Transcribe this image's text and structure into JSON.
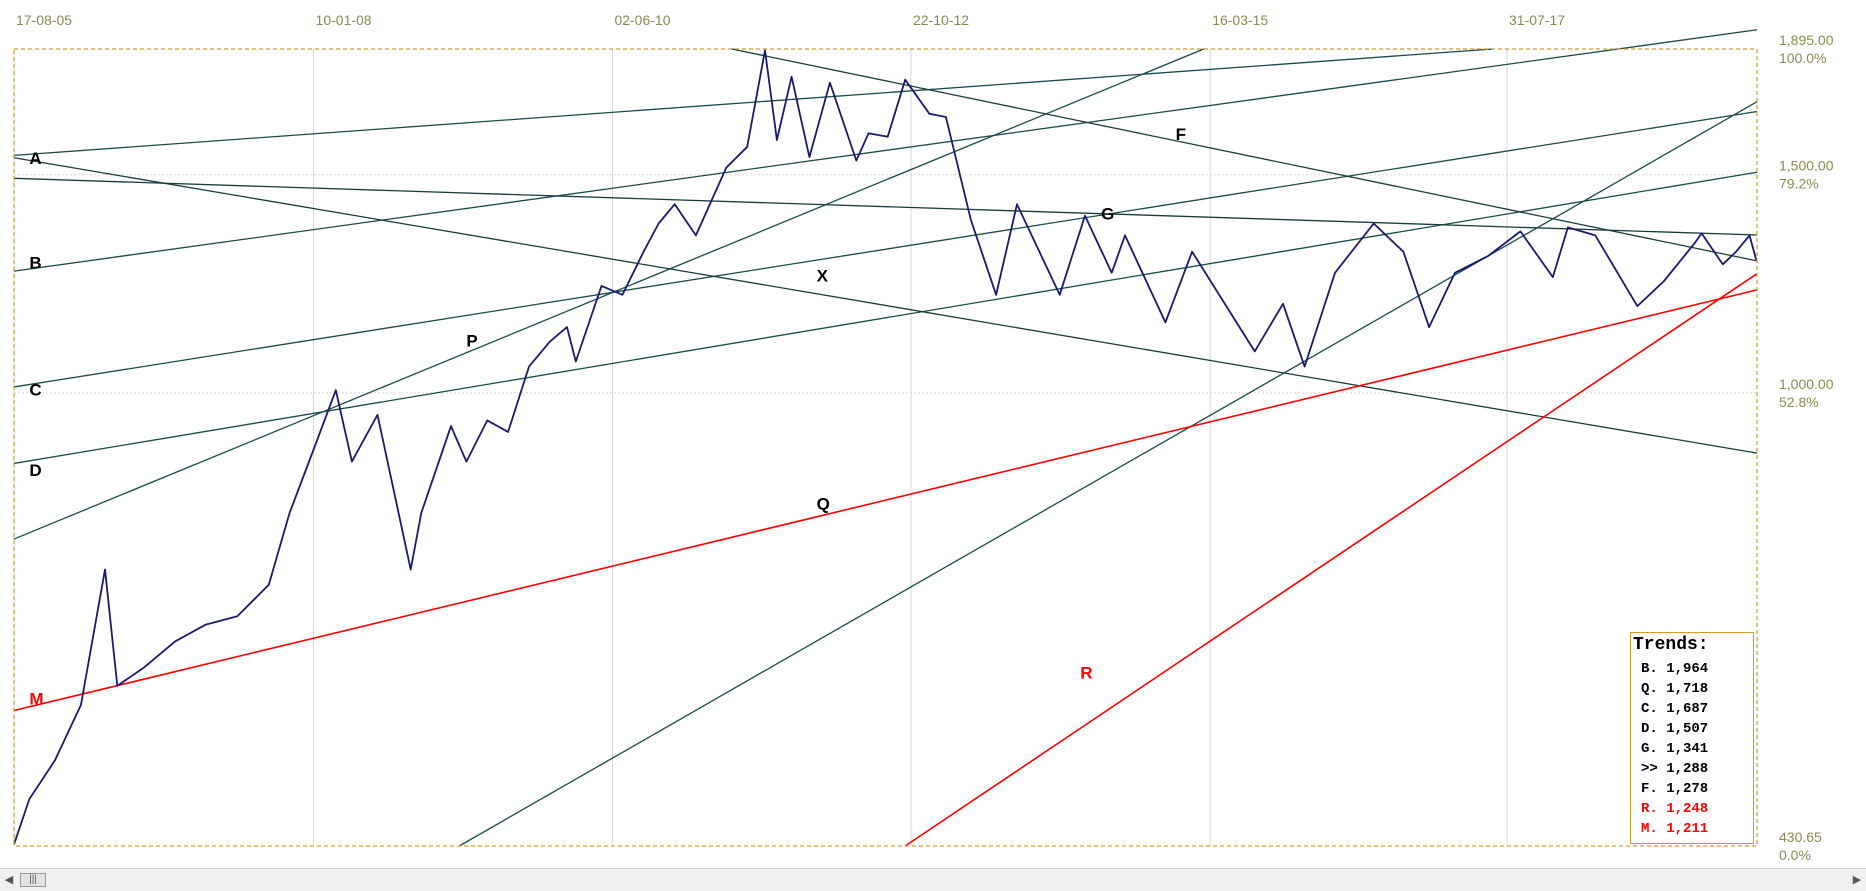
{
  "chart_data": {
    "type": "line",
    "x_axis": {
      "tick_labels": [
        "17-08-05",
        "10-01-08",
        "02-06-10",
        "22-10-12",
        "16-03-15",
        "31-07-17"
      ],
      "range": [
        "2005-08-17",
        "2019-08-01"
      ]
    },
    "y_axis": {
      "scale": "log",
      "range": [
        430.65,
        1895.0
      ],
      "ticks": [
        {
          "value": "1,895.00",
          "pct": "100.0%"
        },
        {
          "value": "1,500.00",
          "pct": "79.2%"
        },
        {
          "value": "1,000.00",
          "pct": "52.8%"
        },
        {
          "value": "430.65",
          "pct": "0.0%"
        }
      ]
    },
    "grid": true,
    "series": [
      {
        "color": "#1a1a6e",
        "points": [
          [
            "2005-08-17",
            432
          ],
          [
            "2005-10-01",
            470
          ],
          [
            "2005-12-15",
            505
          ],
          [
            "2006-03-01",
            560
          ],
          [
            "2006-05-10",
            720
          ],
          [
            "2006-06-15",
            580
          ],
          [
            "2006-09-01",
            600
          ],
          [
            "2006-12-01",
            630
          ],
          [
            "2007-03-01",
            650
          ],
          [
            "2007-06-01",
            660
          ],
          [
            "2007-09-01",
            700
          ],
          [
            "2007-11-01",
            800
          ],
          [
            "2008-01-10",
            900
          ],
          [
            "2008-03-15",
            1005
          ],
          [
            "2008-05-01",
            880
          ],
          [
            "2008-07-15",
            960
          ],
          [
            "2008-10-20",
            720
          ],
          [
            "2008-11-20",
            800
          ],
          [
            "2009-02-15",
            940
          ],
          [
            "2009-04-01",
            880
          ],
          [
            "2009-06-01",
            950
          ],
          [
            "2009-08-01",
            930
          ],
          [
            "2009-10-01",
            1050
          ],
          [
            "2009-12-01",
            1100
          ],
          [
            "2010-01-20",
            1130
          ],
          [
            "2010-02-15",
            1060
          ],
          [
            "2010-05-01",
            1220
          ],
          [
            "2010-07-01",
            1200
          ],
          [
            "2010-09-01",
            1300
          ],
          [
            "2010-10-15",
            1370
          ],
          [
            "2010-12-01",
            1420
          ],
          [
            "2011-02-01",
            1340
          ],
          [
            "2011-05-01",
            1520
          ],
          [
            "2011-07-01",
            1580
          ],
          [
            "2011-08-22",
            1890
          ],
          [
            "2011-09-26",
            1600
          ],
          [
            "2011-11-08",
            1800
          ],
          [
            "2011-12-30",
            1550
          ],
          [
            "2012-02-28",
            1780
          ],
          [
            "2012-05-15",
            1540
          ],
          [
            "2012-06-20",
            1620
          ],
          [
            "2012-08-15",
            1610
          ],
          [
            "2012-10-05",
            1790
          ],
          [
            "2012-12-15",
            1680
          ],
          [
            "2013-02-01",
            1670
          ],
          [
            "2013-04-15",
            1380
          ],
          [
            "2013-06-28",
            1200
          ],
          [
            "2013-08-28",
            1420
          ],
          [
            "2013-12-31",
            1200
          ],
          [
            "2014-03-15",
            1390
          ],
          [
            "2014-06-01",
            1250
          ],
          [
            "2014-07-10",
            1340
          ],
          [
            "2014-11-05",
            1140
          ],
          [
            "2015-01-22",
            1300
          ],
          [
            "2015-07-24",
            1080
          ],
          [
            "2015-10-15",
            1180
          ],
          [
            "2015-12-17",
            1050
          ],
          [
            "2016-03-15",
            1250
          ],
          [
            "2016-07-06",
            1370
          ],
          [
            "2016-10-01",
            1300
          ],
          [
            "2016-12-15",
            1130
          ],
          [
            "2017-03-01",
            1250
          ],
          [
            "2017-06-06",
            1290
          ],
          [
            "2017-09-08",
            1350
          ],
          [
            "2017-12-12",
            1240
          ],
          [
            "2018-01-25",
            1360
          ],
          [
            "2018-04-15",
            1340
          ],
          [
            "2018-08-16",
            1175
          ],
          [
            "2018-11-01",
            1230
          ],
          [
            "2019-01-30",
            1320
          ],
          [
            "2019-02-20",
            1345
          ],
          [
            "2019-04-23",
            1270
          ],
          [
            "2019-06-01",
            1300
          ],
          [
            "2019-07-10",
            1340
          ],
          [
            "2019-07-30",
            1280
          ]
        ]
      }
    ],
    "trendlines": [
      {
        "label": "A",
        "color": "#1a4a4a",
        "p1": [
          "2005-08-17",
          1555
        ],
        "p2": [
          "2017-06-20",
          1895
        ]
      },
      {
        "label": "B",
        "color": "#1a4a4a",
        "p1": [
          "2005-08-17",
          1254
        ],
        "p2": [
          "2019-08-01",
          1964
        ]
      },
      {
        "label": "C",
        "color": "#1a4a4a",
        "p1": [
          "2005-08-17",
          1011
        ],
        "p2": [
          "2019-08-01",
          1687
        ]
      },
      {
        "label": "D",
        "color": "#1a4a4a",
        "p1": [
          "2005-08-17",
          877
        ],
        "p2": [
          "2019-08-01",
          1507
        ]
      },
      {
        "label": "P",
        "color": "#1a4a4a",
        "p1": [
          "2005-08-17",
          762
        ],
        "p2": [
          "2015-02-25",
          1895
        ]
      },
      {
        "label": "Q",
        "color": "#1a4a4a",
        "p1": [
          "2009-03-11",
          430.65
        ],
        "p2": [
          "2019-08-01",
          1718
        ]
      },
      {
        "label": "X",
        "color": "#1a3c3c",
        "p1": [
          "2005-08-17",
          1548
        ],
        "p2": [
          "2019-08-01",
          894
        ]
      },
      {
        "label": "F",
        "color": "#1a3c3c",
        "p1": [
          "2011-05-17",
          1895
        ],
        "p2": [
          "2019-08-01",
          1278
        ]
      },
      {
        "label": "G",
        "color": "#1a3c3c",
        "p1": [
          "2005-08-17",
          1490
        ],
        "p2": [
          "2019-08-01",
          1341
        ]
      },
      {
        "label": "M",
        "color": "#ff0000",
        "p1": [
          "2005-08-17",
          554
        ],
        "p2": [
          "2019-08-01",
          1211
        ]
      },
      {
        "label": "R",
        "color": "#ff0000",
        "p1": [
          "2012-10-05",
          430.65
        ],
        "p2": [
          "2019-08-01",
          1248
        ]
      }
    ],
    "point_labels": [
      {
        "text": "A",
        "color": "#000000",
        "date": "2005-10-01",
        "value": 1530
      },
      {
        "text": "B",
        "color": "#000000",
        "date": "2005-10-01",
        "value": 1260
      },
      {
        "text": "C",
        "color": "#000000",
        "date": "2005-10-01",
        "value": 995
      },
      {
        "text": "D",
        "color": "#000000",
        "date": "2005-10-01",
        "value": 857
      },
      {
        "text": "M",
        "color": "#ff0000",
        "date": "2005-10-01",
        "value": 560
      },
      {
        "text": "P",
        "color": "#000000",
        "date": "2009-04-01",
        "value": 1090
      },
      {
        "text": "X",
        "color": "#000000",
        "date": "2012-01-20",
        "value": 1230
      },
      {
        "text": "Q",
        "color": "#000000",
        "date": "2012-01-20",
        "value": 805
      },
      {
        "text": "F",
        "color": "#000000",
        "date": "2014-12-05",
        "value": 1600
      },
      {
        "text": "G",
        "color": "#000000",
        "date": "2014-05-01",
        "value": 1380
      },
      {
        "text": "R",
        "color": "#ff0000",
        "date": "2014-03-01",
        "value": 588
      }
    ]
  },
  "legend": {
    "title": "Trends:",
    "items": [
      {
        "text": "B. 1,964",
        "color": "#000000"
      },
      {
        "text": "Q. 1,718",
        "color": "#000000"
      },
      {
        "text": "C. 1,687",
        "color": "#000000"
      },
      {
        "text": "D. 1,507",
        "color": "#000000"
      },
      {
        "text": "G. 1,341",
        "color": "#000000"
      },
      {
        "text": ">> 1,288",
        "color": "#000000"
      },
      {
        "text": "F. 1,278",
        "color": "#000000"
      },
      {
        "text": "R. 1,248",
        "color": "#ff0000"
      },
      {
        "text": "M. 1,211",
        "color": "#ff0000"
      }
    ]
  },
  "colors": {
    "frame": "#d79a2a",
    "grid": "#d8d8d8",
    "price": "#1a1a6e",
    "trend_dark": "#1a4a4a",
    "trend_red": "#ff0000",
    "axis_text": "#8a8a50"
  },
  "scrollbar": {
    "left_icon": "chevron-left-icon",
    "right_icon": "chevron-right-icon",
    "thumb_icon": "grip-icon"
  }
}
